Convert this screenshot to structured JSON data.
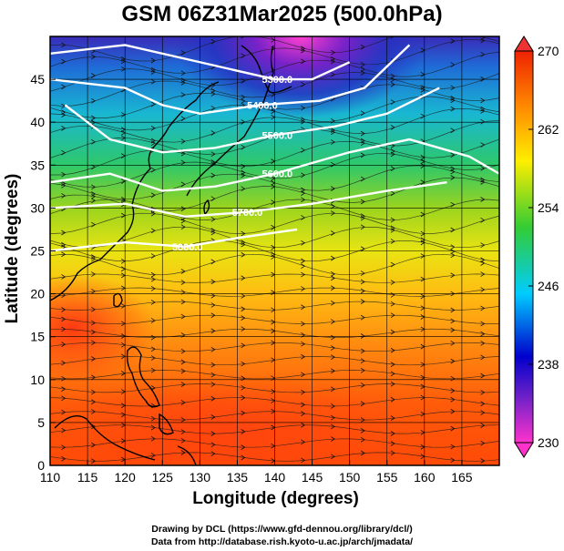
{
  "title": "GSM 06Z31Mar2025 (500.0hPa)",
  "credits": [
    "Drawing by DCL (https://www.gfd-dennou.org/library/dcl/)",
    "Data from http://database.rish.kyoto-u.ac.jp/arch/jmadata/"
  ],
  "chart_data": {
    "type": "heatmap",
    "title": "GSM 06Z31Mar2025 (500.0hPa)",
    "xlabel": "Longitude (degrees)",
    "ylabel": "Latitude  (degrees)",
    "xlim": [
      110,
      170
    ],
    "ylim": [
      0,
      50
    ],
    "x_ticks": [
      110,
      115,
      120,
      125,
      130,
      135,
      140,
      145,
      150,
      155,
      160,
      165
    ],
    "y_ticks": [
      0,
      5,
      10,
      15,
      20,
      25,
      30,
      35,
      40,
      45
    ],
    "colorbar": {
      "min": 230,
      "max": 270,
      "ticks": [
        230,
        238,
        246,
        254,
        262,
        270
      ],
      "colors": [
        "#ff33cc",
        "#0000cc",
        "#00ccff",
        "#33cc33",
        "#ffee00",
        "#ff6600",
        "#ee2200"
      ]
    },
    "contours": [
      {
        "label": "5300.0",
        "points": [
          [
            110,
            48
          ],
          [
            120,
            49
          ],
          [
            130,
            47
          ],
          [
            140,
            45
          ],
          [
            145,
            45
          ],
          [
            150,
            47
          ]
        ]
      },
      {
        "label": "5400.0",
        "points": [
          [
            110,
            45
          ],
          [
            120,
            44
          ],
          [
            125,
            42
          ],
          [
            130,
            41
          ],
          [
            138,
            42
          ],
          [
            146,
            42.5
          ],
          [
            152,
            44
          ],
          [
            158,
            49
          ]
        ]
      },
      {
        "label": "5500.0",
        "points": [
          [
            112,
            42
          ],
          [
            118,
            38
          ],
          [
            125,
            36.5
          ],
          [
            132,
            37
          ],
          [
            140,
            38.5
          ],
          [
            148,
            39.5
          ],
          [
            155,
            41
          ],
          [
            162,
            44
          ]
        ]
      },
      {
        "label": "5600.0",
        "points": [
          [
            110,
            33
          ],
          [
            118,
            34
          ],
          [
            125,
            32
          ],
          [
            132,
            32.5
          ],
          [
            140,
            34
          ],
          [
            150,
            36.5
          ],
          [
            158,
            38
          ],
          [
            166,
            36
          ],
          [
            170,
            34
          ]
        ]
      },
      {
        "label": "5700.0",
        "points": [
          [
            110,
            30
          ],
          [
            120,
            30.5
          ],
          [
            128,
            29
          ],
          [
            136,
            29.5
          ],
          [
            145,
            30.5
          ],
          [
            155,
            32
          ],
          [
            163,
            33
          ]
        ]
      },
      {
        "label": "5800.0",
        "points": [
          [
            110,
            25
          ],
          [
            120,
            26
          ],
          [
            128,
            25.5
          ],
          [
            135,
            26.5
          ],
          [
            143,
            27.5
          ]
        ]
      }
    ]
  }
}
